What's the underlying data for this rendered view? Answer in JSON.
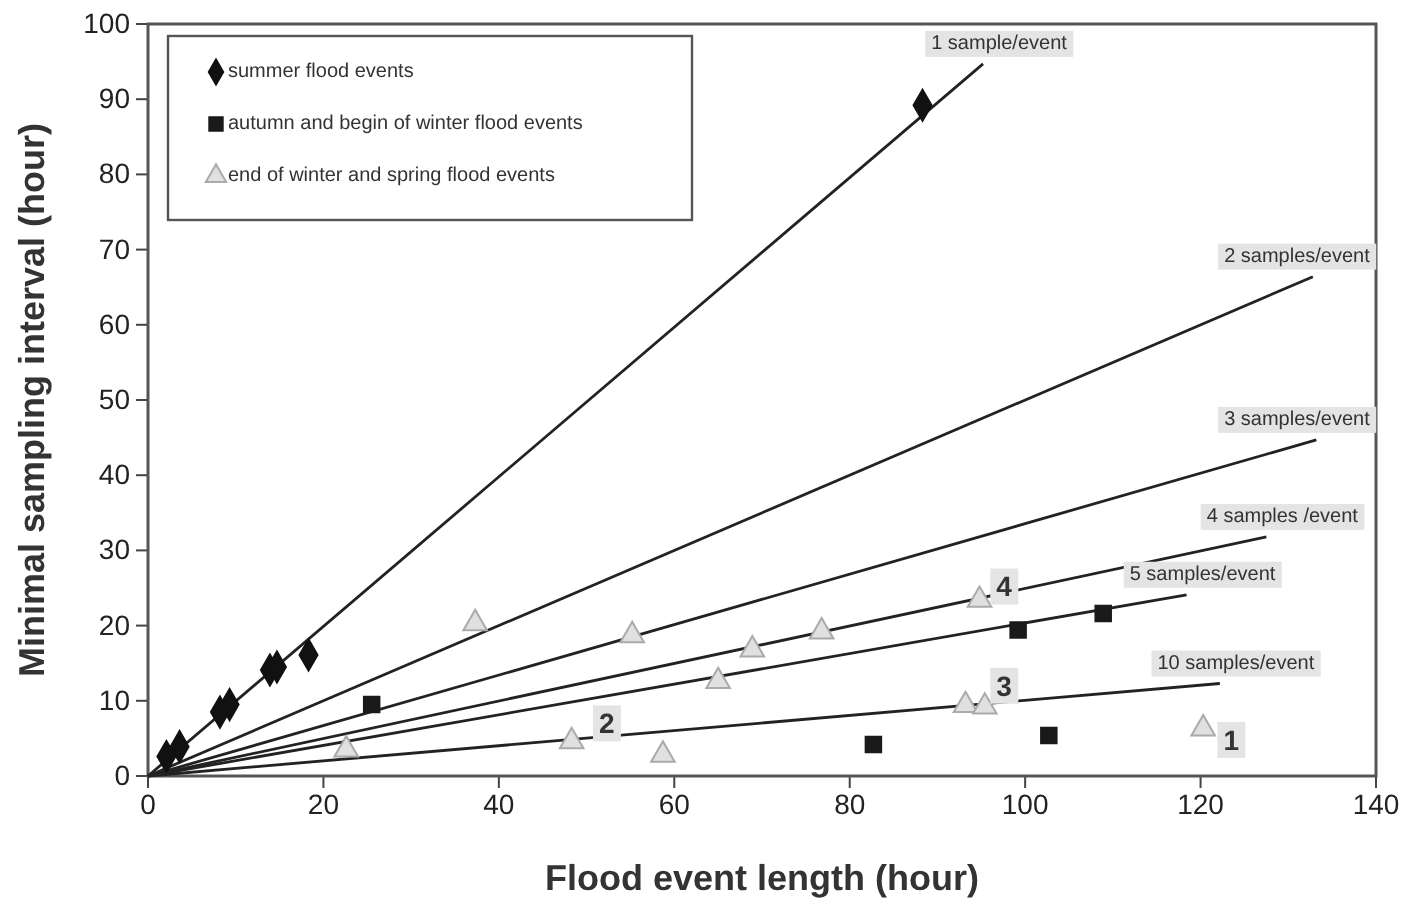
{
  "chart_data": {
    "type": "scatter",
    "xlabel": "Flood event length (hour)",
    "ylabel": "Minimal sampling interval (hour)",
    "xlim": [
      0,
      140
    ],
    "ylim": [
      0,
      100
    ],
    "xticks": [
      0,
      20,
      40,
      60,
      80,
      100,
      120,
      140
    ],
    "yticks": [
      0,
      10,
      20,
      30,
      40,
      50,
      60,
      70,
      80,
      90,
      100
    ],
    "grid": false,
    "legend": "top left",
    "series": [
      {
        "type": "line",
        "name": "1 sample/event",
        "color": "#222222",
        "marker": "none",
        "x": [
          0,
          95.2
        ],
        "values": [
          0,
          94.7
        ]
      },
      {
        "type": "line",
        "name": "2 samples/event",
        "color": "#222222",
        "marker": "none",
        "x": [
          0,
          132.8
        ],
        "values": [
          0,
          66.4
        ]
      },
      {
        "type": "line",
        "name": "3 samples/event",
        "color": "#222222",
        "marker": "none",
        "x": [
          0,
          133.2
        ],
        "values": [
          0,
          44.7
        ]
      },
      {
        "type": "line",
        "name": "4 samples /event",
        "color": "#222222",
        "marker": "none",
        "x": [
          0,
          127.5
        ],
        "values": [
          0,
          31.8
        ]
      },
      {
        "type": "line",
        "name": "5 samples/event",
        "color": "#222222",
        "marker": "none",
        "x": [
          0,
          118.4
        ],
        "values": [
          0,
          24.1
        ]
      },
      {
        "type": "line",
        "name": "10 samples/event",
        "color": "#222222",
        "marker": "none",
        "x": [
          0,
          122.2
        ],
        "values": [
          0,
          12.3
        ]
      },
      {
        "name": "summer flood events",
        "color": "#111111",
        "marker": "diamond",
        "x": [
          2.1,
          3.6,
          8.2,
          9.3,
          13.9,
          14.7,
          18.3,
          88.3
        ],
        "values": [
          2.6,
          3.9,
          8.5,
          9.5,
          14.1,
          14.5,
          16.1,
          89.2
        ]
      },
      {
        "name": "autumn and begin of winter flood events",
        "color": "#1a1a1a",
        "marker": "square",
        "x": [
          25.5,
          82.7,
          99.2,
          102.7,
          108.9
        ],
        "values": [
          9.5,
          4.2,
          19.4,
          5.4,
          21.6
        ]
      },
      {
        "name": "end of winter and spring flood events",
        "color": "#aaaaaa",
        "marker": "triangle",
        "x": [
          22.6,
          37.3,
          48.3,
          55.2,
          58.7,
          65.0,
          68.9,
          76.8,
          93.2,
          94.8,
          95.4,
          120.3
        ],
        "values": [
          3.5,
          20.3,
          4.6,
          18.7,
          2.8,
          12.6,
          16.8,
          19.2,
          9.4,
          23.4,
          9.2,
          6.3
        ]
      }
    ],
    "annotations": [
      {
        "text": "1",
        "x": 123.5,
        "y": 4.8
      },
      {
        "text": "2",
        "x": 52.3,
        "y": 7.0
      },
      {
        "text": "3",
        "x": 97.6,
        "y": 12.0
      },
      {
        "text": "4",
        "x": 97.6,
        "y": 25.2
      }
    ]
  }
}
